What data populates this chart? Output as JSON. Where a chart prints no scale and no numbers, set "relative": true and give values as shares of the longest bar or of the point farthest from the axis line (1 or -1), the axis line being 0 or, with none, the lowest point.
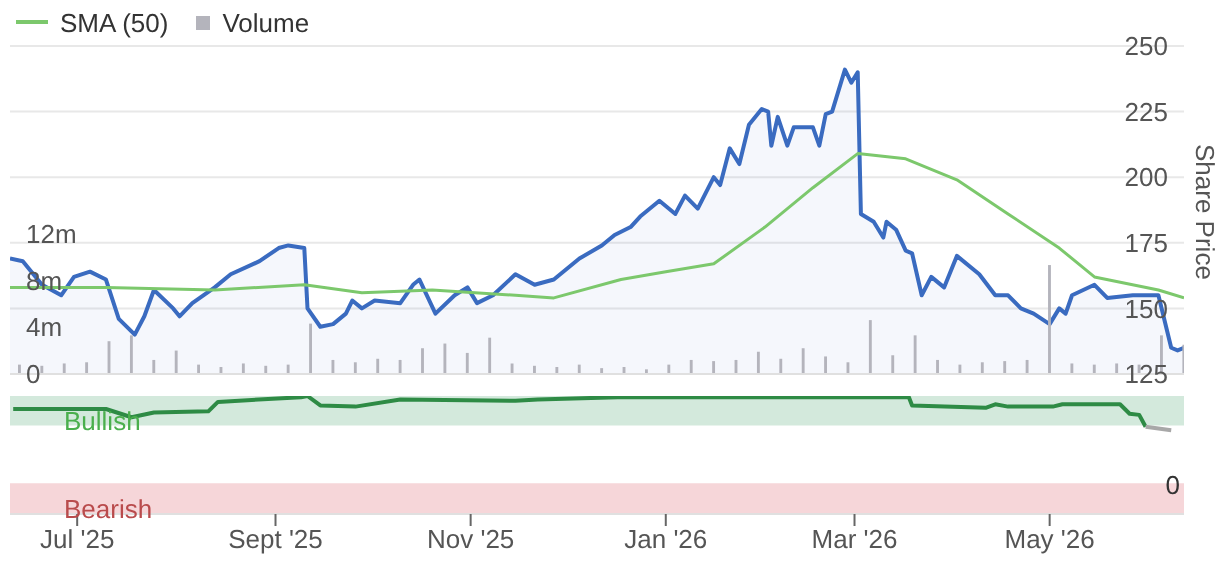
{
  "chart_data": [
    {
      "type": "area",
      "legend": "top left",
      "grid": "y",
      "tick_labels": "y",
      "ylabel": "Share Price",
      "xlim": [
        "2025-06-10",
        "2026-06-12"
      ],
      "xticks": [
        {
          "value": "2025-07-01",
          "label": null
        },
        {
          "value": "2025-09-01",
          "label": null
        },
        {
          "value": "2025-11-01",
          "label": null
        },
        {
          "value": "2026-01-01",
          "label": null
        },
        {
          "value": "2026-03-01",
          "label": null
        },
        {
          "value": "2026-05-01",
          "label": null
        }
      ],
      "ylim": [
        125,
        250
      ],
      "yticks": [
        125,
        150,
        175,
        200,
        225,
        250
      ],
      "y2lim": [
        0,
        28
      ],
      "y2ticks": [
        {
          "value": 0,
          "label": "0"
        },
        {
          "value": 4,
          "label": "4m"
        },
        {
          "value": 8,
          "label": "8m"
        },
        {
          "value": 12,
          "label": "12m"
        }
      ],
      "series": [
        {
          "color": "#3a6bc0",
          "x": [
            "2025-06-10",
            "2025-06-14",
            "2025-06-20",
            "2025-06-26",
            "2025-06-30",
            "2025-07-05",
            "2025-07-10",
            "2025-07-14",
            "2025-07-19",
            "2025-07-22",
            "2025-07-25",
            "2025-07-31",
            "2025-08-02",
            "2025-08-06",
            "2025-08-13",
            "2025-08-18",
            "2025-08-27",
            "2025-09-02",
            "2025-09-05",
            "2025-09-10",
            "2025-09-11",
            "2025-09-15",
            "2025-09-19",
            "2025-09-23",
            "2025-09-25",
            "2025-09-28",
            "2025-10-02",
            "2025-10-10",
            "2025-10-14",
            "2025-10-16",
            "2025-10-21",
            "2025-10-27",
            "2025-10-31",
            "2025-11-03",
            "2025-11-08",
            "2025-11-15",
            "2025-11-21",
            "2025-11-27",
            "2025-12-05",
            "2025-12-12",
            "2025-12-16",
            "2025-12-21",
            "2025-12-24",
            "2025-12-30",
            "2026-01-04",
            "2026-01-07",
            "2026-01-11",
            "2026-01-16",
            "2026-01-18",
            "2026-01-21",
            "2026-01-24",
            "2026-01-27",
            "2026-01-31",
            "2026-02-02",
            "2026-02-03",
            "2026-02-05",
            "2026-02-08",
            "2026-02-10",
            "2026-02-16",
            "2026-02-18",
            "2026-02-20",
            "2026-02-22",
            "2026-02-26",
            "2026-02-28",
            "2026-03-02",
            "2026-03-03",
            "2026-03-07",
            "2026-03-10",
            "2026-03-11",
            "2026-03-14",
            "2026-03-17",
            "2026-03-19",
            "2026-03-22",
            "2026-03-25",
            "2026-03-29",
            "2026-04-02",
            "2026-04-09",
            "2026-04-14",
            "2026-04-18",
            "2026-04-22",
            "2026-04-26",
            "2026-05-01",
            "2026-05-04",
            "2026-05-06",
            "2026-05-08",
            "2026-05-15",
            "2026-05-19",
            "2026-05-27",
            "2026-06-04",
            "2026-06-08",
            "2026-06-10",
            "2026-06-12"
          ],
          "values": [
            169,
            168,
            159,
            155,
            162,
            164,
            161,
            146,
            140,
            147,
            157,
            150,
            147,
            152,
            158,
            163,
            168,
            173,
            174,
            173,
            150,
            143,
            144,
            148,
            153,
            150,
            153,
            152,
            159,
            161,
            148,
            155,
            158,
            152,
            155,
            163,
            159,
            161,
            169,
            174,
            178,
            181,
            185,
            191,
            186,
            193,
            188,
            200,
            197,
            211,
            205,
            220,
            226,
            225,
            212,
            223,
            212,
            219,
            219,
            212,
            224,
            225,
            241,
            236,
            240,
            186,
            183,
            177,
            183,
            180,
            172,
            171,
            155,
            162,
            158,
            170,
            163,
            155,
            155,
            150,
            148,
            144,
            150,
            148,
            155,
            159,
            154,
            155,
            155,
            135,
            134,
            135
          ]
        },
        {
          "type": "line",
          "name": "SMA (50)",
          "color": "#7cc86c",
          "x": [
            "2025-06-10",
            "2025-07-10",
            "2025-08-13",
            "2025-09-10",
            "2025-09-28",
            "2025-10-20",
            "2025-11-15",
            "2025-11-27",
            "2025-12-18",
            "2026-01-01",
            "2026-01-16",
            "2026-02-01",
            "2026-02-16",
            "2026-03-02",
            "2026-03-17",
            "2026-04-02",
            "2026-04-18",
            "2026-05-04",
            "2026-05-15",
            "2026-06-04",
            "2026-06-12"
          ],
          "values": [
            158,
            158,
            157,
            159,
            156,
            157,
            155,
            154,
            161,
            164,
            167,
            181,
            196,
            209,
            207,
            199,
            186,
            173,
            162,
            157,
            154
          ]
        },
        {
          "type": "bar",
          "name": "Volume",
          "axis": "y2",
          "color": "#b4b4bc",
          "x": [
            "2025-06-13",
            "2025-06-20",
            "2025-06-27",
            "2025-07-04",
            "2025-07-11",
            "2025-07-18",
            "2025-07-25",
            "2025-08-01",
            "2025-08-08",
            "2025-08-15",
            "2025-08-22",
            "2025-08-29",
            "2025-09-05",
            "2025-09-12",
            "2025-09-19",
            "2025-09-26",
            "2025-10-03",
            "2025-10-10",
            "2025-10-17",
            "2025-10-24",
            "2025-10-31",
            "2025-11-07",
            "2025-11-14",
            "2025-11-21",
            "2025-11-28",
            "2025-12-05",
            "2025-12-12",
            "2025-12-19",
            "2025-12-26",
            "2026-01-02",
            "2026-01-09",
            "2026-01-16",
            "2026-01-23",
            "2026-01-30",
            "2026-02-06",
            "2026-02-13",
            "2026-02-20",
            "2026-02-27",
            "2026-03-06",
            "2026-03-13",
            "2026-03-20",
            "2026-03-27",
            "2026-04-03",
            "2026-04-10",
            "2026-04-17",
            "2026-04-24",
            "2026-05-01",
            "2026-05-08",
            "2026-05-15",
            "2026-05-22",
            "2026-05-29",
            "2026-06-05",
            "2026-06-12"
          ],
          "values": [
            0.8,
            0.7,
            0.9,
            1.0,
            2.8,
            3.3,
            1.2,
            2.0,
            0.8,
            0.6,
            0.9,
            0.7,
            0.8,
            4.3,
            1.2,
            1.0,
            1.3,
            1.2,
            2.2,
            2.6,
            1.8,
            3.1,
            0.9,
            0.7,
            0.6,
            0.8,
            0.5,
            0.6,
            0.4,
            0.8,
            1.2,
            1.1,
            1.2,
            1.9,
            1.3,
            2.2,
            1.5,
            1.0,
            4.6,
            1.6,
            3.3,
            1.2,
            0.8,
            1.0,
            1.1,
            1.2,
            9.3,
            0.9,
            0.8,
            0.9,
            0.8,
            3.3,
            2.5
          ]
        }
      ]
    },
    {
      "type": "line",
      "relative": true,
      "tick_labels": "x",
      "annotations": [
        "0"
      ],
      "xlim": [
        "2025-06-10",
        "2026-06-12"
      ],
      "xticks": [
        {
          "value": "2025-07-01",
          "label": "Jul '25"
        },
        {
          "value": "2025-09-01",
          "label": "Sept '25"
        },
        {
          "value": "2025-11-01",
          "label": "Nov '25"
        },
        {
          "value": "2026-01-01",
          "label": "Jan '26"
        },
        {
          "value": "2026-03-01",
          "label": "Mar '26"
        },
        {
          "value": "2026-05-01",
          "label": "May '26"
        }
      ],
      "bands": [
        {
          "axis": "y",
          "from": 0.75,
          "to": 1.0,
          "label": "Bullish",
          "color": "#d3e9dc"
        },
        {
          "axis": "y",
          "from": 0,
          "to": 0.26,
          "label": "Bearish",
          "color": "#f6d6d9"
        }
      ],
      "series": [
        {
          "color": "#2e8b45",
          "x": [
            "2025-06-11",
            "2025-07-10",
            "2025-07-18",
            "2025-07-25",
            "2025-08-11",
            "2025-08-14",
            "2025-09-09",
            "2025-09-11",
            "2025-09-15",
            "2025-09-26",
            "2025-10-10",
            "2025-11-15",
            "2025-11-22",
            "2025-12-17",
            "2026-02-26",
            "2026-03-18",
            "2026-03-19",
            "2026-04-11",
            "2026-04-14",
            "2026-04-18",
            "2026-05-02",
            "2026-05-05",
            "2026-05-23",
            "2026-05-26",
            "2026-05-29",
            "2026-05-31"
          ],
          "values": [
            0.89,
            0.89,
            0.82,
            0.86,
            0.87,
            0.95,
            0.99,
            1.0,
            0.92,
            0.91,
            0.97,
            0.96,
            0.97,
            0.99,
            0.99,
            0.99,
            0.92,
            0.9,
            0.93,
            0.91,
            0.91,
            0.93,
            0.93,
            0.85,
            0.84,
            0.74
          ]
        },
        {
          "color": "#a8a8a8",
          "x": [
            "2026-05-31",
            "2026-06-08"
          ],
          "values": [
            0.74,
            0.71
          ]
        }
      ]
    }
  ]
}
